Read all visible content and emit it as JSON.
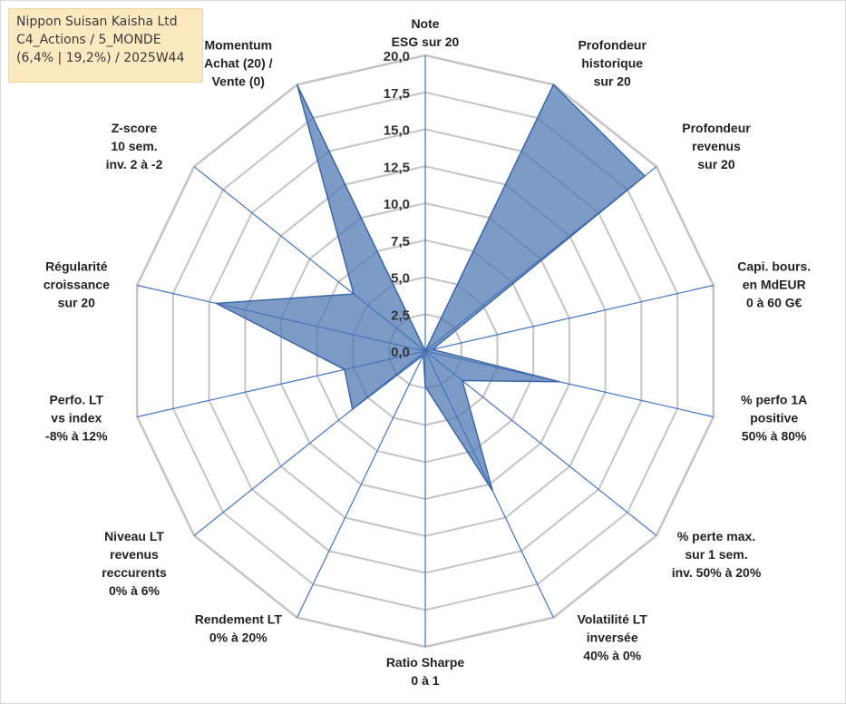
{
  "info": {
    "line1": "Nippon Suisan Kaisha Ltd",
    "line2": "C4_Actions / 5_MONDE",
    "line3": "(6,4% | 19,2%) / 2025W44"
  },
  "colors": {
    "fill": "#4a75b0",
    "stroke": "#3b66a8",
    "spoke": "#4472c4",
    "grid": "#c4c4c4",
    "info_bg": "#fde9c0"
  },
  "chart_data": {
    "type": "radar",
    "title": "",
    "range": [
      0,
      20
    ],
    "tick_values": [
      0,
      2.5,
      5,
      7.5,
      10,
      12.5,
      15,
      17.5,
      20
    ],
    "tick_labels": [
      "0,0",
      "2,5",
      "5,0",
      "7,5",
      "10,0",
      "12,5",
      "15,0",
      "17,5",
      "20,0"
    ],
    "axes": [
      {
        "name": "note-esg",
        "label": [
          "Note",
          "ESG sur 20"
        ],
        "value": 0
      },
      {
        "name": "profondeur-historique",
        "label": [
          "Profondeur",
          "historique",
          "sur 20"
        ],
        "value": 20
      },
      {
        "name": "profondeur-revenus",
        "label": [
          "Profondeur",
          "revenus",
          "sur 20"
        ],
        "value": 19
      },
      {
        "name": "capi-bours",
        "label": [
          "Capi. bours.",
          "en MdEUR",
          "0 à 60 G€"
        ],
        "value": 0.5
      },
      {
        "name": "perfo-1a-positive",
        "label": [
          "% perfo 1A",
          "positive",
          "50% à 80%"
        ],
        "value": 9.3
      },
      {
        "name": "perte-max",
        "label": [
          "% perte max.",
          "sur 1 sem.",
          "inv. 50% à 20%"
        ],
        "value": 3.2
      },
      {
        "name": "volatilite-lt",
        "label": [
          "Volatilité LT",
          "inversée",
          "40% à 0%"
        ],
        "value": 10.5
      },
      {
        "name": "ratio-sharpe",
        "label": [
          "Ratio Sharpe",
          "0 à 1"
        ],
        "value": 2.4
      },
      {
        "name": "rendement-lt",
        "label": [
          "Rendement LT",
          "0% à 20%"
        ],
        "value": 0.3
      },
      {
        "name": "niveau-lt-revenus",
        "label": [
          "Niveau LT",
          "revenus",
          "reccurents",
          "0% à 6%"
        ],
        "value": 6.3
      },
      {
        "name": "perfo-lt-vs-index",
        "label": [
          "Perfo. LT",
          "vs index",
          "-8% à 12%"
        ],
        "value": 5.6
      },
      {
        "name": "regularite-croissance",
        "label": [
          "Régularité",
          "croissance",
          "sur 20"
        ],
        "value": 14.5
      },
      {
        "name": "z-score",
        "label": [
          "Z-score",
          "10 sem.",
          "inv. 2 à -2"
        ],
        "value": 6.2
      },
      {
        "name": "momentum",
        "label": [
          "Momentum",
          "Achat (20) /",
          "Vente (0)"
        ],
        "value": 20
      }
    ]
  }
}
